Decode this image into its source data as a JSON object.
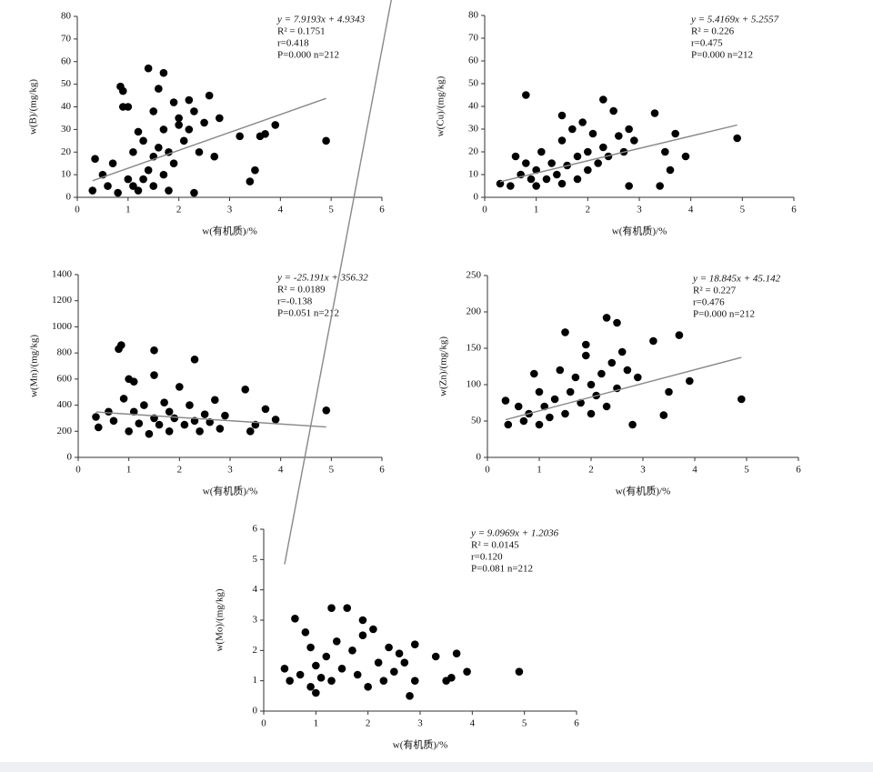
{
  "chart_data": [
    {
      "type": "scatter",
      "y_label": "w(B)/(mg/kg)",
      "x_label": "w(有机质)/%",
      "xlim": [
        0,
        6
      ],
      "xticks": [
        0,
        1,
        2,
        3,
        4,
        5,
        6
      ],
      "ylim": [
        0,
        80
      ],
      "yticks": [
        0,
        10,
        20,
        30,
        40,
        50,
        60,
        70,
        80
      ],
      "color": "#000000",
      "fit_color": "#888888",
      "fit": {
        "label": "y = 7.9193x + 4.9343",
        "slope": 7.9193,
        "intercept": 4.9343
      },
      "stats": [
        "R² = 0.1751",
        "r=0.418",
        "P=0.000  n=212"
      ],
      "x": [
        0.3,
        0.35,
        0.5,
        0.6,
        0.7,
        0.8,
        0.85,
        0.9,
        0.9,
        1.0,
        1.0,
        1.1,
        1.1,
        1.2,
        1.2,
        1.3,
        1.3,
        1.4,
        1.4,
        1.5,
        1.5,
        1.5,
        1.6,
        1.6,
        1.7,
        1.7,
        1.7,
        1.8,
        1.8,
        1.9,
        1.9,
        2.0,
        2.0,
        2.1,
        2.2,
        2.2,
        2.3,
        2.3,
        2.4,
        2.5,
        2.6,
        2.7,
        2.8,
        3.2,
        3.4,
        3.5,
        3.6,
        3.7,
        3.9,
        4.9
      ],
      "values": [
        3,
        17,
        10,
        5,
        15,
        2,
        49,
        47,
        40,
        40,
        8,
        5,
        20,
        3,
        29,
        8,
        25,
        57,
        12,
        38,
        18,
        5,
        48,
        22,
        55,
        30,
        10,
        20,
        3,
        42,
        15,
        32,
        35,
        25,
        43,
        30,
        38,
        2,
        20,
        33,
        45,
        18,
        35,
        27,
        7,
        12,
        27,
        28,
        32,
        25
      ]
    },
    {
      "type": "scatter",
      "y_label": "w(Cu)/(mg/kg)",
      "x_label": "w(有机质)/%",
      "xlim": [
        0,
        6
      ],
      "xticks": [
        0,
        1,
        2,
        3,
        4,
        5,
        6
      ],
      "ylim": [
        0,
        80
      ],
      "yticks": [
        0,
        10,
        20,
        30,
        40,
        50,
        60,
        70,
        80
      ],
      "color": "#000000",
      "fit_color": "#888888",
      "fit": {
        "label": "y = 5.4169x + 5.2557",
        "slope": 5.4169,
        "intercept": 5.2557
      },
      "stats": [
        "R² = 0.226",
        "r=0.475",
        "P=0.000  n=212"
      ],
      "x": [
        0.3,
        0.5,
        0.6,
        0.7,
        0.8,
        0.8,
        0.9,
        1.0,
        1.0,
        1.1,
        1.2,
        1.3,
        1.4,
        1.5,
        1.5,
        1.5,
        1.6,
        1.7,
        1.8,
        1.8,
        1.9,
        2.0,
        2.0,
        2.1,
        2.2,
        2.3,
        2.3,
        2.4,
        2.5,
        2.6,
        2.7,
        2.8,
        2.8,
        2.9,
        3.3,
        3.4,
        3.5,
        3.6,
        3.7,
        3.9,
        4.9
      ],
      "values": [
        6,
        5,
        18,
        10,
        45,
        15,
        8,
        5,
        12,
        20,
        8,
        15,
        10,
        36,
        25,
        6,
        14,
        30,
        18,
        8,
        33,
        20,
        12,
        28,
        15,
        43,
        22,
        18,
        38,
        27,
        20,
        30,
        5,
        25,
        37,
        5,
        20,
        12,
        28,
        18,
        26
      ]
    },
    {
      "type": "scatter",
      "y_label": "w(Mn)/(mg/kg)",
      "x_label": "w(有机质)/%",
      "xlim": [
        0,
        6
      ],
      "xticks": [
        0,
        1,
        2,
        3,
        4,
        5,
        6
      ],
      "ylim": [
        0,
        1400
      ],
      "yticks": [
        0,
        200,
        400,
        600,
        800,
        1000,
        1200,
        1400
      ],
      "color": "#000000",
      "fit_color": "#888888",
      "fit": {
        "label": "y = -25.191x + 356.32",
        "slope": -25.191,
        "intercept": 356.32
      },
      "stats": [
        "R² = 0.0189",
        "r=-0.138",
        "P=0.051  n=212"
      ],
      "x": [
        0.35,
        0.4,
        0.6,
        0.7,
        0.8,
        0.85,
        0.9,
        1.0,
        1.0,
        1.1,
        1.1,
        1.2,
        1.3,
        1.4,
        1.5,
        1.5,
        1.5,
        1.6,
        1.7,
        1.8,
        1.8,
        1.9,
        2.0,
        2.1,
        2.2,
        2.3,
        2.3,
        2.4,
        2.5,
        2.6,
        2.7,
        2.8,
        2.9,
        3.3,
        3.4,
        3.5,
        3.7,
        3.9,
        4.9
      ],
      "values": [
        310,
        230,
        350,
        280,
        830,
        860,
        450,
        600,
        200,
        350,
        580,
        260,
        400,
        180,
        820,
        630,
        300,
        250,
        420,
        200,
        350,
        300,
        540,
        250,
        400,
        750,
        280,
        200,
        330,
        270,
        440,
        220,
        320,
        520,
        200,
        250,
        370,
        290,
        360
      ]
    },
    {
      "type": "scatter",
      "y_label": "w(Zn)/(mg/kg)",
      "x_label": "w(有机质)/%",
      "xlim": [
        0,
        6
      ],
      "xticks": [
        0,
        1,
        2,
        3,
        4,
        5,
        6
      ],
      "ylim": [
        0,
        250
      ],
      "yticks": [
        0,
        50,
        100,
        150,
        200,
        250
      ],
      "color": "#000000",
      "fit_color": "#888888",
      "fit": {
        "label": "y = 18.845x + 45.142",
        "slope": 18.845,
        "intercept": 45.142
      },
      "stats": [
        "R² = 0.227",
        "r=0.476",
        "P=0.000  n=212"
      ],
      "x": [
        0.35,
        0.4,
        0.6,
        0.7,
        0.8,
        0.9,
        1.0,
        1.0,
        1.1,
        1.2,
        1.3,
        1.4,
        1.5,
        1.5,
        1.6,
        1.7,
        1.8,
        1.9,
        1.9,
        2.0,
        2.0,
        2.1,
        2.2,
        2.3,
        2.3,
        2.4,
        2.5,
        2.5,
        2.6,
        2.7,
        2.8,
        2.9,
        3.2,
        3.4,
        3.5,
        3.7,
        3.9,
        4.9
      ],
      "values": [
        78,
        45,
        70,
        50,
        60,
        115,
        90,
        45,
        70,
        55,
        80,
        120,
        172,
        60,
        90,
        110,
        75,
        155,
        140,
        100,
        60,
        85,
        115,
        192,
        70,
        130,
        185,
        95,
        145,
        120,
        45,
        110,
        160,
        58,
        90,
        168,
        105,
        80
      ]
    },
    {
      "type": "scatter",
      "y_label": "w(Mo)/(mg/kg)",
      "x_label": "w(有机质)/%",
      "xlim": [
        0,
        6
      ],
      "xticks": [
        0,
        1,
        2,
        3,
        4,
        5,
        6
      ],
      "ylim": [
        0,
        6
      ],
      "yticks": [
        0,
        1,
        2,
        3,
        4,
        5,
        6
      ],
      "color": "#000000",
      "fit_color": "#888888",
      "fit": {
        "label": "y = 9.0969x + 1.2036",
        "slope": 9.0969,
        "intercept": 1.2036
      },
      "stats": [
        "R² = 0.0145",
        "r=0.120",
        "P=0.081  n=212"
      ],
      "x": [
        0.4,
        0.5,
        0.6,
        0.7,
        0.8,
        0.9,
        0.9,
        1.0,
        1.0,
        1.1,
        1.2,
        1.3,
        1.3,
        1.4,
        1.5,
        1.6,
        1.7,
        1.8,
        1.9,
        1.9,
        2.0,
        2.1,
        2.2,
        2.3,
        2.4,
        2.5,
        2.6,
        2.7,
        2.8,
        2.9,
        2.9,
        3.3,
        3.5,
        3.6,
        3.7,
        3.9,
        4.9
      ],
      "values": [
        1.4,
        1.0,
        3.05,
        1.2,
        2.6,
        2.1,
        0.8,
        1.5,
        0.6,
        1.1,
        1.8,
        3.4,
        1.0,
        2.3,
        1.4,
        3.4,
        2.0,
        1.2,
        3.0,
        2.5,
        0.8,
        2.7,
        1.6,
        1.0,
        2.1,
        1.3,
        1.9,
        1.6,
        0.5,
        2.2,
        1.0,
        1.8,
        1.0,
        1.1,
        1.9,
        1.3,
        1.3
      ]
    }
  ]
}
